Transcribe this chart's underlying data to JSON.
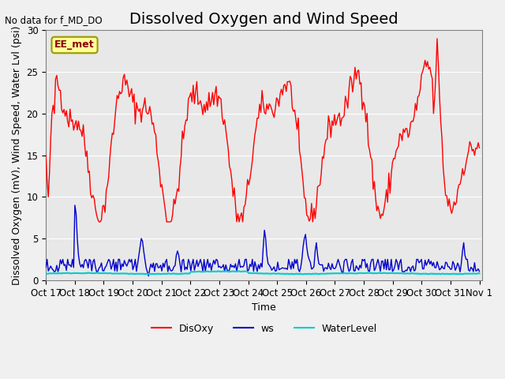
{
  "title": "Dissolved Oxygen and Wind Speed",
  "subtitle": "No data for f_MD_DO",
  "annotation": "EE_met",
  "xlabel": "Time",
  "ylabel": "Dissolved Oxygen (mV), Wind Speed, Water Lvl (psi)",
  "xlim_days": [
    0,
    15.1
  ],
  "ylim": [
    0,
    30
  ],
  "yticks": [
    0,
    5,
    10,
    15,
    20,
    25,
    30
  ],
  "xtick_labels": [
    "Oct 17",
    "Oct 18",
    "Oct 19",
    "Oct 20",
    "Oct 21",
    "Oct 22",
    "Oct 23",
    "Oct 24",
    "Oct 25",
    "Oct 26",
    "Oct 27",
    "Oct 28",
    "Oct 29",
    "Oct 30",
    "Oct 31",
    "Nov 1"
  ],
  "bg_color": "#e8e8e8",
  "plot_bg_color": "#e8e8e8",
  "disoxy_color": "#ff0000",
  "ws_color": "#0000cc",
  "wl_color": "#00cccc",
  "legend_entries": [
    "DisOxy",
    "ws",
    "WaterLevel"
  ],
  "title_fontsize": 14,
  "label_fontsize": 9,
  "tick_fontsize": 8.5
}
